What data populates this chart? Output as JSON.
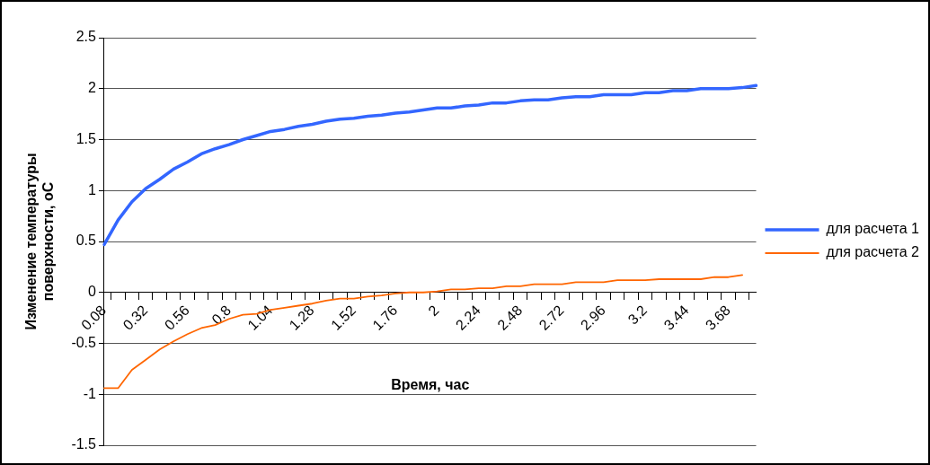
{
  "chart_data": {
    "type": "line",
    "xlabel": "Время, час",
    "ylabel": "Изменение температуры поверхности, оС",
    "categories": [
      "0.08",
      null,
      null,
      "0.32",
      null,
      null,
      "0.56",
      null,
      null,
      "0.8",
      null,
      null,
      "1.04",
      null,
      null,
      "1.28",
      null,
      null,
      "1.52",
      null,
      null,
      "1.76",
      null,
      null,
      "2",
      null,
      null,
      "2.24",
      null,
      null,
      "2.48",
      null,
      null,
      "2.72",
      null,
      null,
      "2.96",
      null,
      null,
      "3.2",
      null,
      null,
      "3.44",
      null,
      null,
      "3.68",
      null,
      null
    ],
    "series": [
      {
        "name": "для расчета 1",
        "color": "#3366ff",
        "values": [
          0.47,
          0.71,
          0.89,
          1.02,
          1.11,
          1.21,
          1.28,
          1.36,
          1.41,
          1.45,
          1.5,
          1.54,
          1.58,
          1.6,
          1.63,
          1.65,
          1.68,
          1.7,
          1.71,
          1.73,
          1.74,
          1.76,
          1.77,
          1.79,
          1.81,
          1.81,
          1.83,
          1.84,
          1.86,
          1.86,
          1.88,
          1.89,
          1.89,
          1.91,
          1.92,
          1.92,
          1.94,
          1.94,
          1.94,
          1.96,
          1.96,
          1.98,
          1.98,
          2.0,
          2.0,
          2.0,
          2.01,
          2.03
        ]
      },
      {
        "name": "для расчета 2",
        "color": "#ff6600",
        "values": [
          -0.94,
          -0.94,
          -0.76,
          -0.66,
          -0.56,
          -0.48,
          -0.41,
          -0.35,
          -0.32,
          -0.26,
          -0.22,
          -0.21,
          -0.17,
          -0.15,
          -0.13,
          -0.11,
          -0.08,
          -0.06,
          -0.06,
          -0.04,
          -0.03,
          -0.01,
          0,
          0,
          0.01,
          0.03,
          0.03,
          0.04,
          0.04,
          0.06,
          0.06,
          0.08,
          0.08,
          0.08,
          0.1,
          0.1,
          0.1,
          0.12,
          0.12,
          0.12,
          0.13,
          0.13,
          0.13,
          0.13,
          0.15,
          0.15,
          0.17,
          null
        ]
      }
    ],
    "ylim": [
      -1.5,
      2.5
    ],
    "yticks": [
      -1.5,
      -1,
      -0.5,
      0,
      0.5,
      1,
      1.5,
      2,
      2.5
    ],
    "grid": "y",
    "legend": "right",
    "marker": "none",
    "line_style": "solid"
  }
}
